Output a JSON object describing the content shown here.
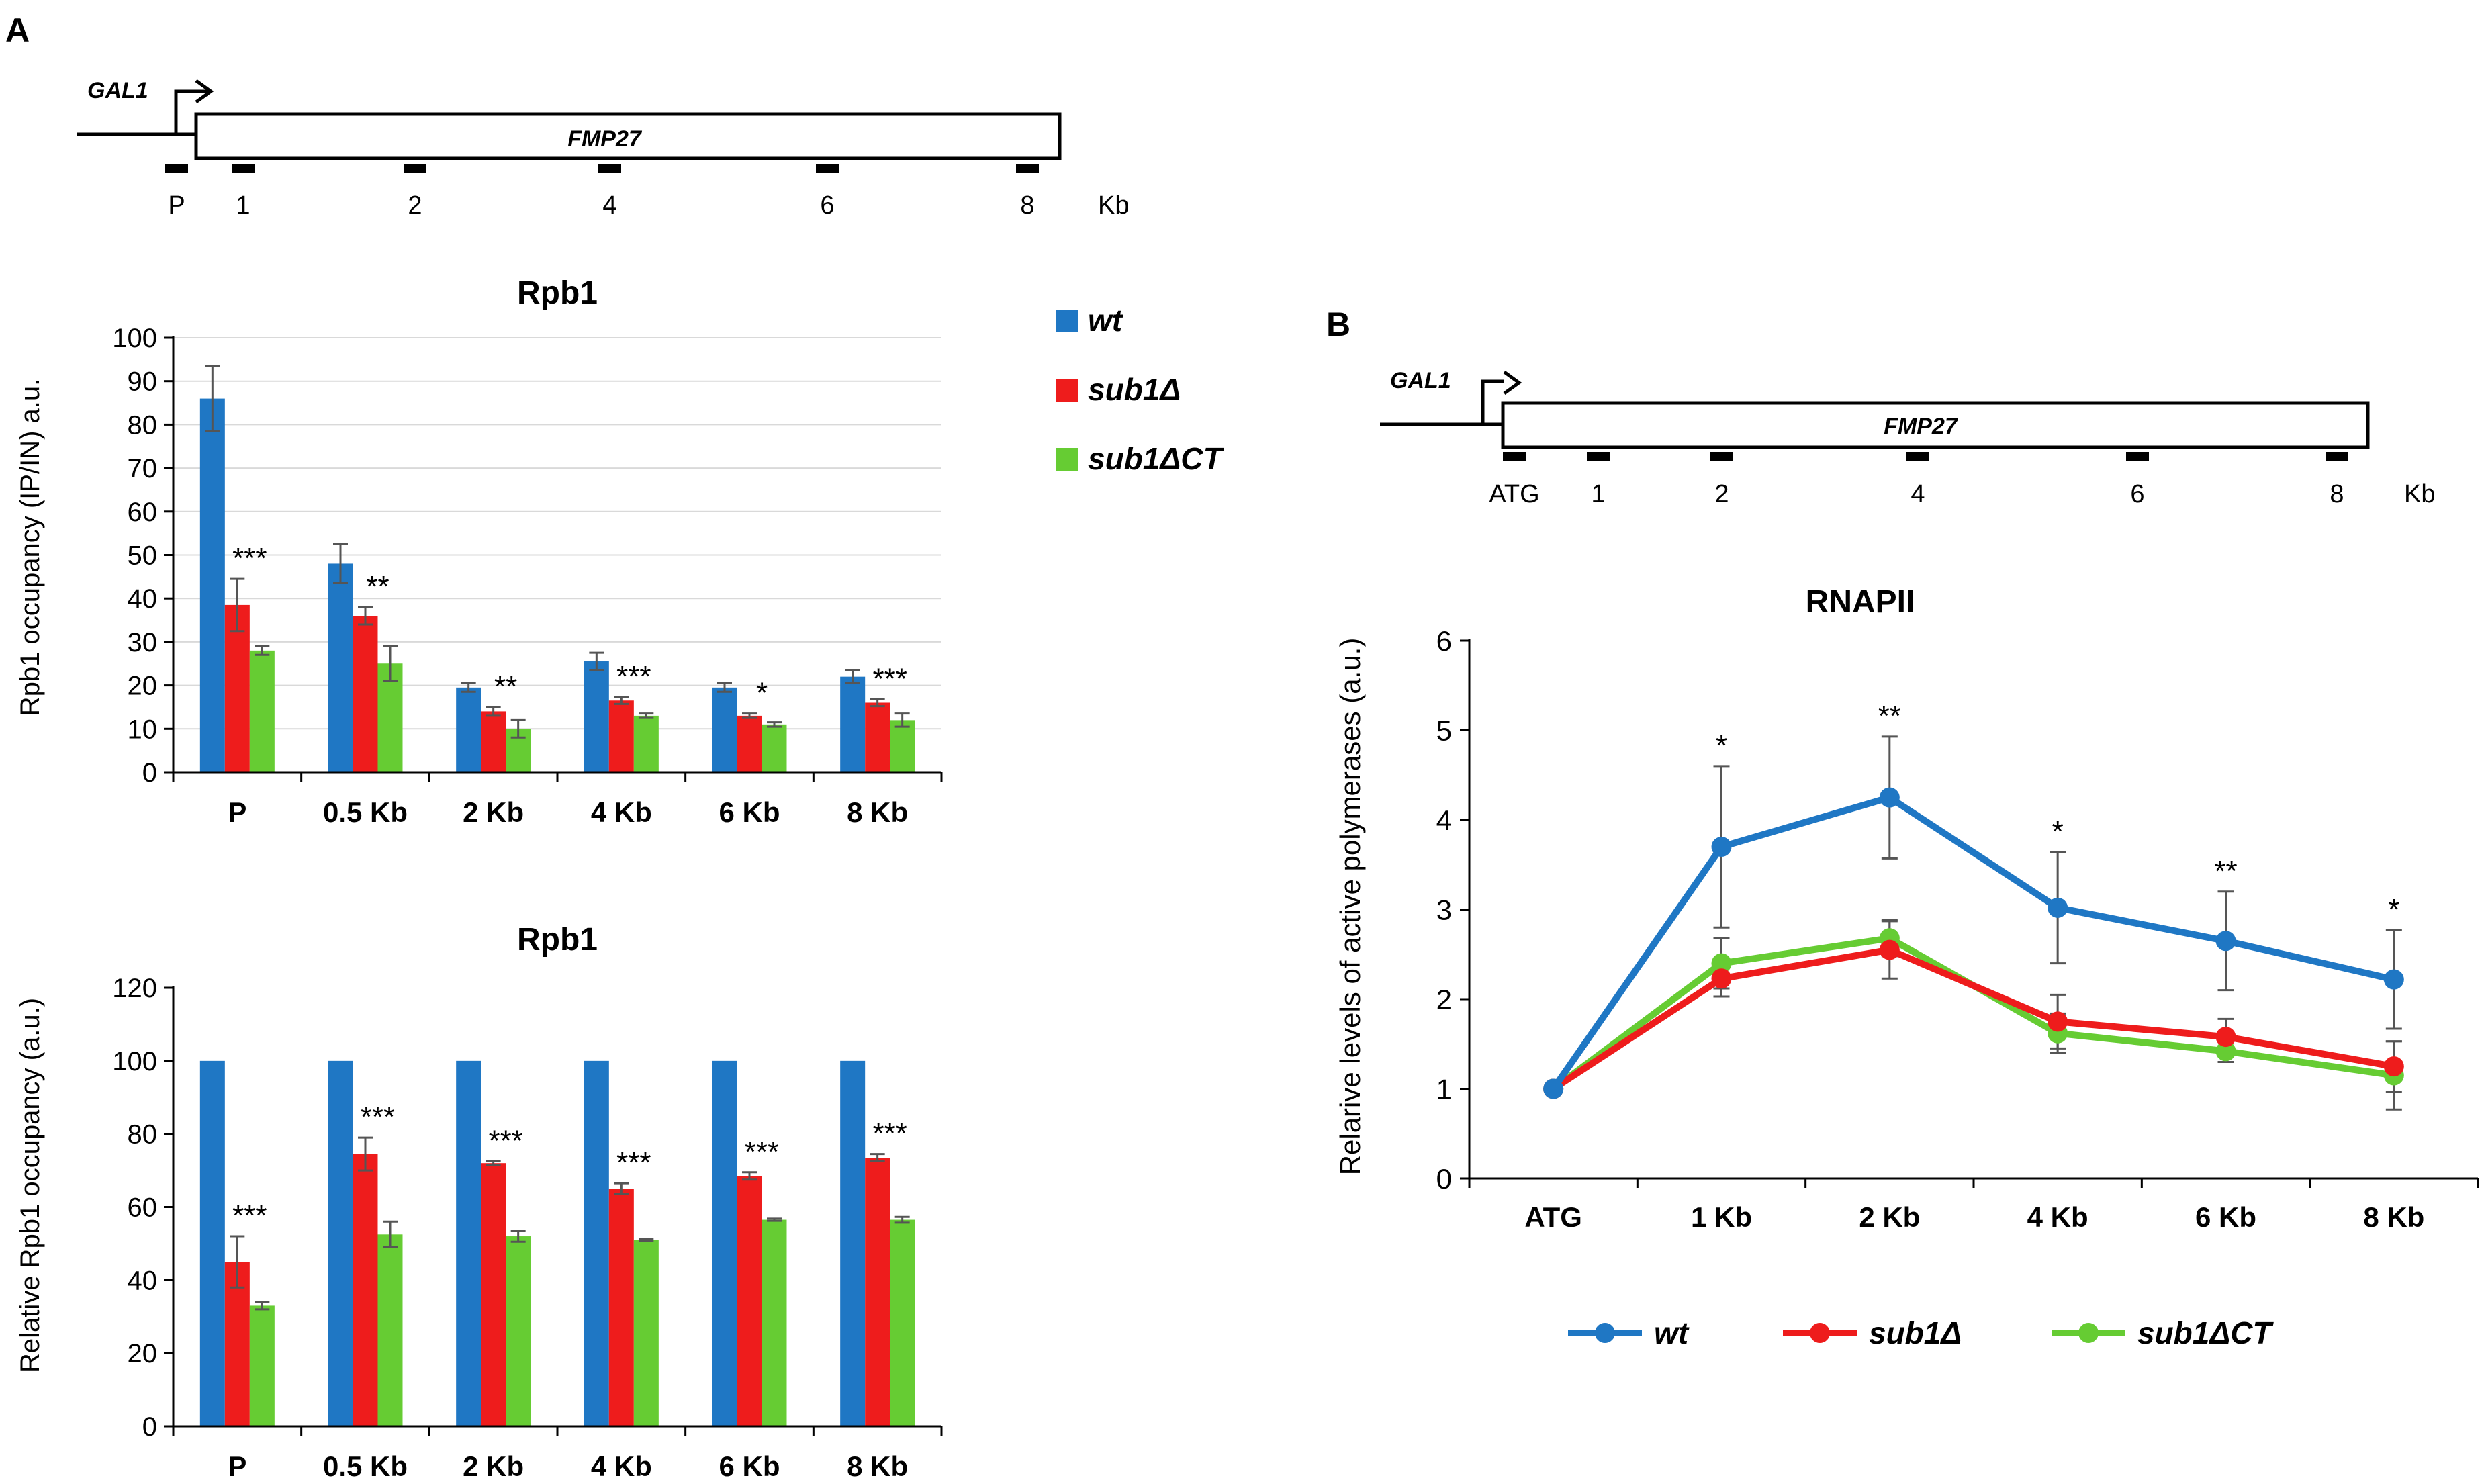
{
  "figure": {
    "panelA_label": "A",
    "panelB_label": "B"
  },
  "colors": {
    "wt": "#1f77c4",
    "sub1": "#ee1c1c",
    "sub1ct": "#66cc33",
    "axis": "#000000",
    "grid": "#d9d9d9",
    "error": "#555555"
  },
  "diagramA": {
    "promoter": "GAL1",
    "gene": "FMP27",
    "positions": [
      "P",
      "1",
      "2",
      "4",
      "6",
      "8"
    ],
    "unit": "Kb"
  },
  "diagramB": {
    "promoter": "GAL1",
    "gene": "FMP27",
    "positions": [
      "ATG",
      "1",
      "2",
      "4",
      "6",
      "8"
    ],
    "unit": "Kb"
  },
  "legendA": [
    {
      "key": "wt",
      "label": "wt"
    },
    {
      "key": "sub1",
      "label": "sub1Δ"
    },
    {
      "key": "sub1ct",
      "label": "sub1ΔCT"
    }
  ],
  "legendB": [
    {
      "key": "wt",
      "label": "wt"
    },
    {
      "key": "sub1",
      "label": "sub1Δ"
    },
    {
      "key": "sub1ct",
      "label": "sub1ΔCT"
    }
  ],
  "chart_data": [
    {
      "id": "rpb1_occupancy",
      "type": "bar",
      "title": "Rpb1",
      "ylabel": "Rpb1 occupancy (IP/IN) a.u.",
      "xlabel": "",
      "ylim": [
        0,
        100
      ],
      "yticks": [
        0,
        10,
        20,
        30,
        40,
        50,
        60,
        70,
        80,
        90,
        100
      ],
      "grid": true,
      "categories": [
        "P",
        "0.5 Kb",
        "2 Kb",
        "4 Kb",
        "6 Kb",
        "8 Kb"
      ],
      "series": [
        {
          "name": "wt",
          "key": "wt",
          "values": [
            86,
            48,
            19.5,
            25.5,
            19.5,
            22
          ],
          "errors": [
            7.5,
            4.5,
            1,
            2,
            1,
            1.5
          ]
        },
        {
          "name": "sub1Δ",
          "key": "sub1",
          "values": [
            38.5,
            36,
            14,
            16.5,
            13,
            16
          ],
          "errors": [
            6,
            2,
            1,
            0.8,
            0.5,
            0.8
          ]
        },
        {
          "name": "sub1ΔCT",
          "key": "sub1ct",
          "values": [
            28,
            25,
            10,
            13,
            11,
            12
          ],
          "errors": [
            1,
            4,
            2,
            0.5,
            0.5,
            1.5
          ]
        }
      ],
      "annotations": [
        "***",
        "**",
        "**",
        "***",
        "*",
        "***"
      ]
    },
    {
      "id": "relative_rpb1_occupancy",
      "type": "bar",
      "title": "Rpb1",
      "ylabel": "Relative Rpb1 occupancy (a.u.)",
      "xlabel": "",
      "ylim": [
        0,
        120
      ],
      "yticks": [
        0,
        20,
        40,
        60,
        80,
        100,
        120
      ],
      "grid": false,
      "categories": [
        "P",
        "0.5 Kb",
        "2 Kb",
        "4 Kb",
        "6 Kb",
        "8 Kb"
      ],
      "series": [
        {
          "name": "wt",
          "key": "wt",
          "values": [
            100,
            100,
            100,
            100,
            100,
            100
          ],
          "errors": [
            0,
            0,
            0,
            0,
            0,
            0
          ]
        },
        {
          "name": "sub1Δ",
          "key": "sub1",
          "values": [
            45,
            74.5,
            72,
            65,
            68.5,
            73.5
          ],
          "errors": [
            7,
            4.5,
            0.5,
            1.5,
            1,
            1
          ]
        },
        {
          "name": "sub1ΔCT",
          "key": "sub1ct",
          "values": [
            33,
            52.5,
            52,
            51,
            56.5,
            56.5
          ],
          "errors": [
            1,
            3.5,
            1.5,
            0.3,
            0.3,
            0.8
          ]
        }
      ],
      "annotations": [
        "***",
        "***",
        "***",
        "***",
        "***",
        "***"
      ]
    },
    {
      "id": "rnapii_active",
      "type": "line",
      "title": "RNAPII",
      "ylabel": "Relarive levels of active polymerases (a.u.)",
      "xlabel": "",
      "ylim": [
        0,
        6
      ],
      "yticks": [
        0,
        1,
        2,
        3,
        4,
        5,
        6
      ],
      "grid": false,
      "categories": [
        "ATG",
        "1 Kb",
        "2 Kb",
        "4 Kb",
        "6 Kb",
        "8 Kb"
      ],
      "series": [
        {
          "name": "wt",
          "key": "wt",
          "values": [
            1,
            3.7,
            4.25,
            3.02,
            2.65,
            2.22
          ],
          "errors": [
            0,
            0.9,
            0.68,
            0.62,
            0.55,
            0.55
          ]
        },
        {
          "name": "sub1Δ",
          "key": "sub1",
          "values": [
            1,
            2.23,
            2.55,
            1.75,
            1.58,
            1.25
          ],
          "errors": [
            0,
            0.2,
            0.32,
            0.3,
            0.2,
            0.28
          ]
        },
        {
          "name": "sub1ΔCT",
          "key": "sub1ct",
          "values": [
            1,
            2.4,
            2.68,
            1.62,
            1.42,
            1.15
          ],
          "errors": [
            0,
            0.28,
            0.2,
            0.22,
            0.12,
            0.38
          ]
        }
      ],
      "annotations": [
        "",
        "*",
        "**",
        "*",
        "**",
        "*"
      ]
    }
  ]
}
